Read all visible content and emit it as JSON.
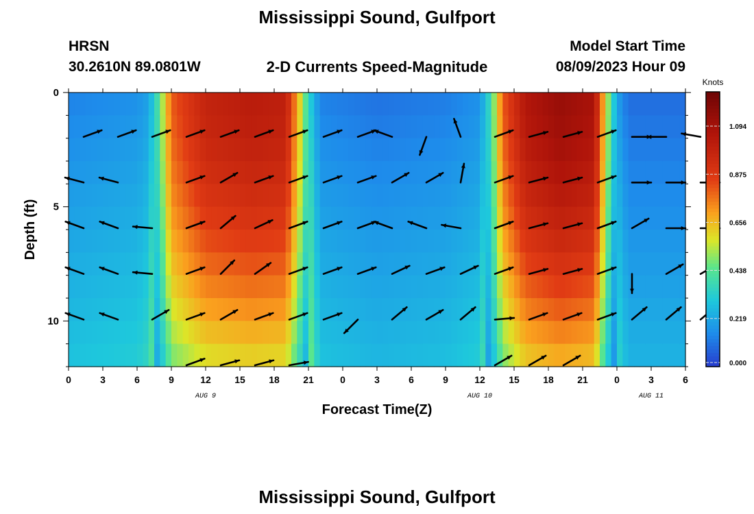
{
  "chart_data": {
    "type": "heatmap",
    "title": "Mississippi Sound, Gulfport",
    "header": {
      "station": "HRSN",
      "coords": "30.2610N  89.0801W",
      "subtitle": "2-D Currents Speed-Magnitude",
      "model_label": "Model Start Time",
      "model_time": "08/09/2023 Hour 09"
    },
    "xlabel": "Forecast Time(Z)",
    "ylabel": "Depth (ft)",
    "x_tick_labels": [
      "0",
      "3",
      "6",
      "9",
      "12",
      "15",
      "18",
      "21",
      "0",
      "3",
      "6",
      "9",
      "12",
      "15",
      "18",
      "21",
      "0",
      "3",
      "6"
    ],
    "date_labels": [
      {
        "label": "AUG 9",
        "tick_index": 4
      },
      {
        "label": "AUG 10",
        "tick_index": 12
      },
      {
        "label": "AUG 11",
        "tick_index": 17
      }
    ],
    "y_ticks": [
      0,
      5,
      10
    ],
    "ylim": [
      0,
      12
    ],
    "colorbar": {
      "unit": "Knots",
      "ticks": [
        "1.094",
        "0.875",
        "0.656",
        "0.438",
        "0.219",
        "0.000"
      ],
      "max": 1.25
    },
    "speed_time_profile": [
      [
        0,
        0.13
      ],
      [
        6,
        0.16
      ],
      [
        7,
        0.2
      ],
      [
        8,
        0.45
      ],
      [
        9,
        0.8
      ],
      [
        12,
        0.98
      ],
      [
        16,
        1.02
      ],
      [
        19,
        1.0
      ],
      [
        20,
        0.7
      ],
      [
        21,
        0.35
      ],
      [
        22,
        0.13
      ],
      [
        27,
        0.1
      ],
      [
        33,
        0.12
      ],
      [
        36,
        0.16
      ],
      [
        37,
        0.4
      ],
      [
        38,
        0.8
      ],
      [
        40,
        1.05
      ],
      [
        43,
        1.13
      ],
      [
        46,
        1.08
      ],
      [
        47,
        0.6
      ],
      [
        48,
        0.2
      ],
      [
        49,
        0.09
      ],
      [
        54,
        0.09
      ]
    ],
    "arrow_times": [
      0,
      3,
      6,
      9,
      12,
      15,
      18,
      21,
      24,
      27,
      30,
      33,
      36,
      39,
      42,
      45,
      48,
      51,
      54
    ],
    "arrow_depths": [
      2,
      4,
      6,
      8,
      10,
      12
    ],
    "arrow_directions_deg": [
      [
        -20,
        -20,
        -20,
        -20,
        -20,
        -20,
        -20,
        -20,
        -20,
        200,
        110,
        -110,
        -20,
        -15,
        -15,
        -20,
        0,
        180,
        190
      ],
      [
        195,
        195,
        null,
        -20,
        -30,
        -20,
        -20,
        -20,
        -20,
        -30,
        -30,
        -80,
        -20,
        -15,
        -15,
        -20,
        0,
        0,
        0
      ],
      [
        200,
        200,
        185,
        -20,
        -40,
        -25,
        -20,
        -20,
        -20,
        200,
        200,
        190,
        -20,
        -15,
        -15,
        -20,
        -30,
        0,
        0
      ],
      [
        200,
        200,
        185,
        -20,
        -45,
        -35,
        -20,
        -20,
        -20,
        -25,
        -20,
        -25,
        -20,
        -15,
        -15,
        -20,
        90,
        -30,
        -30
      ],
      [
        200,
        200,
        -30,
        -20,
        -30,
        -20,
        -20,
        -20,
        135,
        -40,
        -30,
        -40,
        -5,
        -20,
        -20,
        -20,
        -40,
        -40,
        -40
      ],
      [
        null,
        null,
        null,
        -20,
        -15,
        -15,
        -10,
        null,
        null,
        null,
        null,
        null,
        -30,
        -30,
        -30,
        null,
        null,
        null,
        null
      ]
    ]
  }
}
